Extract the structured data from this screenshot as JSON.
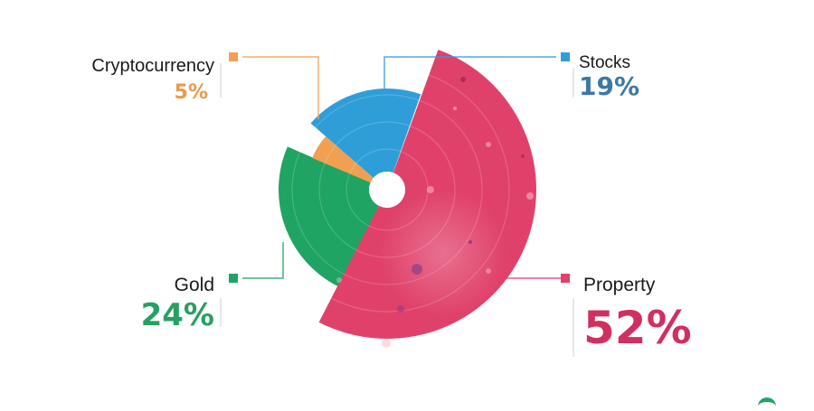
{
  "chart_data": {
    "type": "pie",
    "categories": [
      "Property",
      "Gold",
      "Cryptocurrency",
      "Stocks"
    ],
    "values": [
      52,
      24,
      5,
      19
    ],
    "unit": "%",
    "value_labels": [
      "52%",
      "24%",
      "5%",
      "19%"
    ],
    "colors": [
      "#e0416a",
      "#1fa463",
      "#f0a050",
      "#2f9ed8"
    ],
    "label_colors": [
      "#d0305f",
      "#27a062",
      "#e89a4a",
      "#3b78a8"
    ],
    "legend_placement": "callouts around chart",
    "grid": false
  }
}
